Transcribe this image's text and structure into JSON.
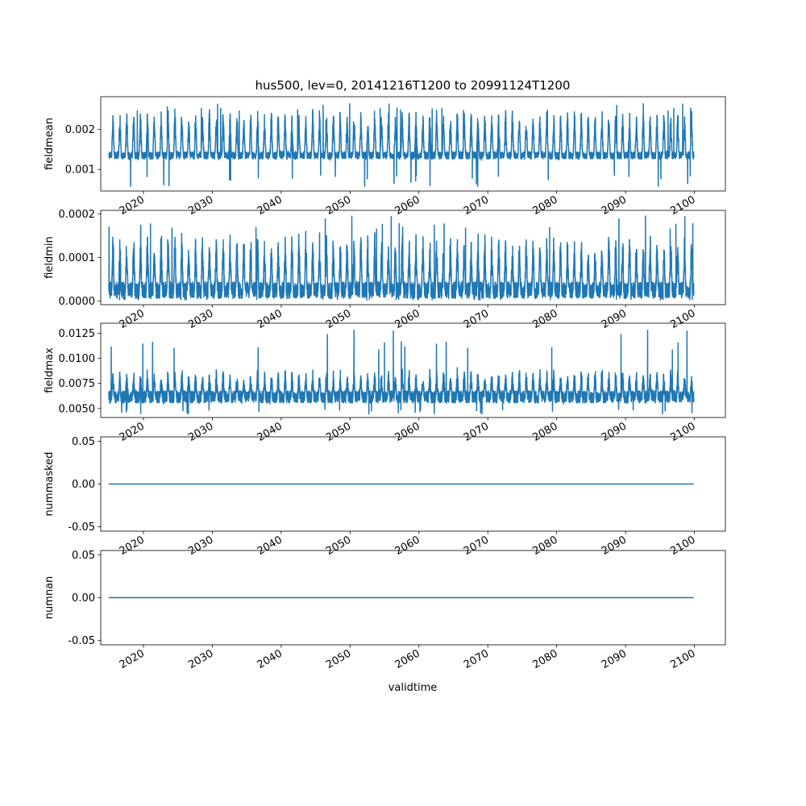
{
  "chart_data": {
    "type": "line",
    "title": "hus500, lev=0, 20141216T1200 to 20991124T1200",
    "xlabel": "validtime",
    "x_range": [
      "2014-12-16",
      "2099-11-24"
    ],
    "xlim": [
      2013.8,
      2104.5
    ],
    "x_ticks": [
      2020,
      2030,
      2040,
      2050,
      2060,
      2070,
      2080,
      2090,
      2100
    ],
    "x_tick_labels": [
      "2020",
      "2030",
      "2040",
      "2050",
      "2060",
      "2070",
      "2080",
      "2090",
      "2100"
    ],
    "series_color": "#1f77b4",
    "panels": [
      {
        "ylabel": "fieldmean",
        "ylim": [
          0.00046,
          0.00282
        ],
        "y_ticks": [
          0.001,
          0.002
        ],
        "y_tick_labels": [
          "0.001",
          "0.002"
        ],
        "baseline_low": 0.00125,
        "baseline_high": 0.00145,
        "summer_peak": 0.00225,
        "overall_min": 0.00056,
        "overall_max": 0.00268
      },
      {
        "ylabel": "fieldmin",
        "ylim": [
          -8e-06,
          0.000208
        ],
        "y_ticks": [
          0.0,
          0.0001,
          0.0002
        ],
        "y_tick_labels": [
          "0.0000",
          "0.0001",
          "0.0002"
        ],
        "baseline_low": 5e-06,
        "baseline_high": 4.5e-05,
        "summer_peak": 0.00013,
        "overall_min": 2e-06,
        "overall_max": 0.0002
      },
      {
        "ylabel": "fieldmax",
        "ylim": [
          0.0041,
          0.0135
        ],
        "y_ticks": [
          0.005,
          0.0075,
          0.01,
          0.0125
        ],
        "y_tick_labels": [
          "0.0050",
          "0.0075",
          "0.0100",
          "0.0125"
        ],
        "baseline_low": 0.0055,
        "baseline_high": 0.0068,
        "summer_peak": 0.0085,
        "overall_min": 0.0044,
        "overall_max": 0.0131
      },
      {
        "ylabel": "nummasked",
        "ylim": [
          -0.055,
          0.055
        ],
        "y_ticks": [
          -0.05,
          0.0,
          0.05
        ],
        "y_tick_labels": [
          "-0.05",
          "0.00",
          "0.05"
        ],
        "constant": 0.0
      },
      {
        "ylabel": "numnan",
        "ylim": [
          -0.055,
          0.055
        ],
        "y_ticks": [
          -0.05,
          0.0,
          0.05
        ],
        "y_tick_labels": [
          "-0.05",
          "0.00",
          "0.05"
        ],
        "constant": 0.0
      }
    ]
  }
}
